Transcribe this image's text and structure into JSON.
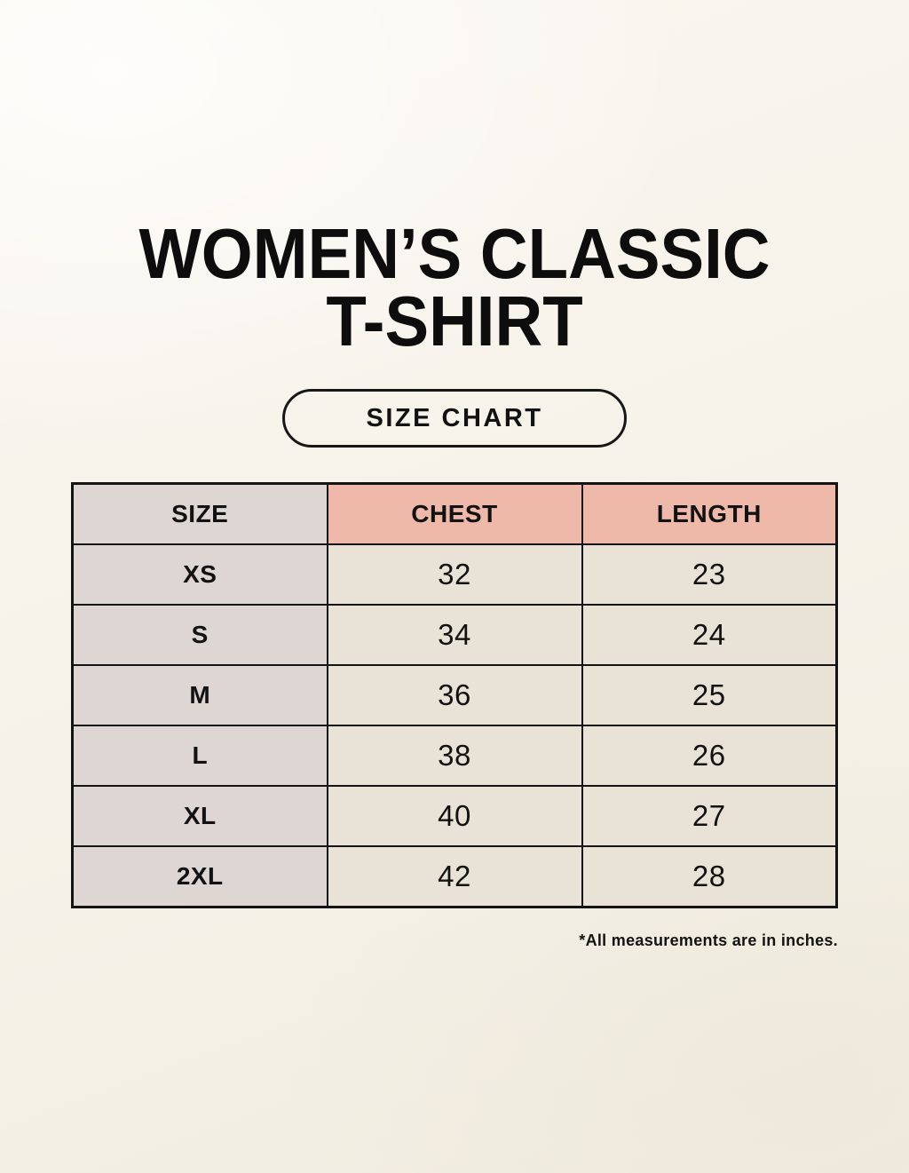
{
  "page": {
    "title_line1": "WOMEN’S CLASSIC",
    "title_line2": "T-SHIRT",
    "badge_label": "SIZE CHART",
    "footnote": "*All measurements are in inches."
  },
  "table": {
    "columns": [
      "SIZE",
      "CHEST",
      "LENGTH"
    ],
    "rows": [
      [
        "XS",
        "32",
        "23"
      ],
      [
        "S",
        "34",
        "24"
      ],
      [
        "M",
        "36",
        "25"
      ],
      [
        "L",
        "38",
        "26"
      ],
      [
        "XL",
        "40",
        "27"
      ],
      [
        "2XL",
        "42",
        "28"
      ]
    ]
  },
  "colors": {
    "background": "#f6f2e9",
    "size_column": "#ddd6d2",
    "header_accent": "#eeb9a8",
    "data_cell": "#e9e3d7",
    "border": "#141414",
    "text": "#121212"
  }
}
